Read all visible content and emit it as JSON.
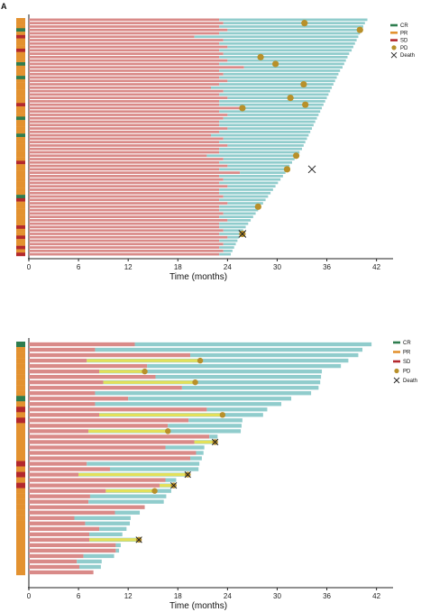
{
  "panel_label": "A",
  "legend_labels": [
    "CR",
    "PR",
    "SD",
    "PD",
    "Death"
  ],
  "colors": {
    "CR": "#2e7d4f",
    "PR": "#e39230",
    "SD": "#b3282d",
    "PD": "#b8902a",
    "Death": "#222222",
    "pre_bar": "#d98a88",
    "post_bar": "#90cccc",
    "yellow_bar": "#e3e05a"
  },
  "chart_data": [
    {
      "type": "swimmer",
      "xlabel": "Time (months)",
      "xlim": [
        0,
        44
      ],
      "xticks": [
        0,
        6,
        12,
        18,
        24,
        30,
        36,
        42
      ],
      "bars": [
        {
          "first": 23,
          "total": 40.9,
          "resp": "PR"
        },
        {
          "first": 23.5,
          "total": 40.6,
          "resp": "PR"
        },
        {
          "first": 23,
          "total": 40.4,
          "resp": "PR"
        },
        {
          "first": 24,
          "total": 40.2,
          "resp": "CR"
        },
        {
          "first": 23,
          "total": 40,
          "resp": "PR"
        },
        {
          "first": 20,
          "total": 39.8,
          "resp": "SD"
        },
        {
          "first": 23.5,
          "total": 39.6,
          "resp": "PR"
        },
        {
          "first": 23,
          "total": 39.4,
          "resp": "PR"
        },
        {
          "first": 24,
          "total": 39.2,
          "resp": "PR"
        },
        {
          "first": 23,
          "total": 39,
          "resp": "SD"
        },
        {
          "first": 23.5,
          "total": 38.7,
          "resp": "PR"
        },
        {
          "first": 23,
          "total": 38.5,
          "resp": "PR"
        },
        {
          "first": 24,
          "total": 38.3,
          "resp": "PR"
        },
        {
          "first": 23,
          "total": 38.1,
          "resp": "CR"
        },
        {
          "first": 26,
          "total": 37.9,
          "resp": "PR"
        },
        {
          "first": 23,
          "total": 37.6,
          "resp": "PR"
        },
        {
          "first": 23.5,
          "total": 37.4,
          "resp": "PR"
        },
        {
          "first": 23,
          "total": 37.2,
          "resp": "CR"
        },
        {
          "first": 24,
          "total": 37,
          "resp": "PR"
        },
        {
          "first": 23,
          "total": 36.8,
          "resp": "PR"
        },
        {
          "first": 22,
          "total": 36.6,
          "resp": "PR"
        },
        {
          "first": 23.5,
          "total": 36.4,
          "resp": "PR"
        },
        {
          "first": 23,
          "total": 36.2,
          "resp": "PR"
        },
        {
          "first": 24,
          "total": 36,
          "resp": "PR"
        },
        {
          "first": 23,
          "total": 35.8,
          "resp": "PR"
        },
        {
          "first": 23,
          "total": 35.6,
          "resp": "SD"
        },
        {
          "first": 25.5,
          "total": 35.4,
          "resp": "PR"
        },
        {
          "first": 23,
          "total": 35.2,
          "resp": "PR"
        },
        {
          "first": 24,
          "total": 35,
          "resp": "PR"
        },
        {
          "first": 23.5,
          "total": 34.8,
          "resp": "CR"
        },
        {
          "first": 23,
          "total": 34.6,
          "resp": "PR"
        },
        {
          "first": 23,
          "total": 34.4,
          "resp": "PR"
        },
        {
          "first": 24,
          "total": 34.2,
          "resp": "PR"
        },
        {
          "first": 23,
          "total": 34,
          "resp": "PR"
        },
        {
          "first": 22,
          "total": 33.8,
          "resp": "CR"
        },
        {
          "first": 23.5,
          "total": 33.6,
          "resp": "PR"
        },
        {
          "first": 23,
          "total": 33.4,
          "resp": "PR"
        },
        {
          "first": 24,
          "total": 33.2,
          "resp": "PR"
        },
        {
          "first": 23,
          "total": 33,
          "resp": "PR"
        },
        {
          "first": 23,
          "total": 32.7,
          "resp": "PR"
        },
        {
          "first": 21.5,
          "total": 32.4,
          "resp": "PR"
        },
        {
          "first": 23.5,
          "total": 32.1,
          "resp": "PR"
        },
        {
          "first": 23,
          "total": 31.8,
          "resp": "SD"
        },
        {
          "first": 24,
          "total": 31.5,
          "resp": "PR"
        },
        {
          "first": 23,
          "total": 31.3,
          "resp": "PR"
        },
        {
          "first": 25.5,
          "total": 31,
          "resp": "PR"
        },
        {
          "first": 23,
          "total": 30.7,
          "resp": "PR"
        },
        {
          "first": 23.5,
          "total": 30.4,
          "resp": "PR"
        },
        {
          "first": 23,
          "total": 30.1,
          "resp": "PR"
        },
        {
          "first": 24,
          "total": 29.8,
          "resp": "PR"
        },
        {
          "first": 23,
          "total": 29.5,
          "resp": "PR"
        },
        {
          "first": 23,
          "total": 29.2,
          "resp": "PR"
        },
        {
          "first": 23.5,
          "total": 28.9,
          "resp": "CR"
        },
        {
          "first": 23,
          "total": 28.6,
          "resp": "SD"
        },
        {
          "first": 24,
          "total": 28.3,
          "resp": "PR"
        },
        {
          "first": 23,
          "total": 28,
          "resp": "PR"
        },
        {
          "first": 23,
          "total": 27.7,
          "resp": "PR"
        },
        {
          "first": 23.5,
          "total": 27.4,
          "resp": "PR"
        },
        {
          "first": 23,
          "total": 27.1,
          "resp": "PR"
        },
        {
          "first": 24,
          "total": 26.8,
          "resp": "PR"
        },
        {
          "first": 23,
          "total": 26.5,
          "resp": "PR"
        },
        {
          "first": 23,
          "total": 26.2,
          "resp": "SD"
        },
        {
          "first": 23.5,
          "total": 25.9,
          "resp": "PR"
        },
        {
          "first": 23,
          "total": 25.6,
          "resp": "PR"
        },
        {
          "first": 24,
          "total": 25.4,
          "resp": "SD"
        },
        {
          "first": 23,
          "total": 25.2,
          "resp": "PR"
        },
        {
          "first": 23.5,
          "total": 25,
          "resp": "PR"
        },
        {
          "first": 23,
          "total": 24.8,
          "resp": "SD"
        },
        {
          "first": 23.5,
          "total": 24.6,
          "resp": "PR"
        },
        {
          "first": 23,
          "total": 24.4,
          "resp": "SD"
        }
      ],
      "pd_events": [
        {
          "bar": 1,
          "x": 33.3
        },
        {
          "bar": 3,
          "x": 40
        },
        {
          "bar": 11,
          "x": 28
        },
        {
          "bar": 13,
          "x": 29.8
        },
        {
          "bar": 19,
          "x": 33.2
        },
        {
          "bar": 23,
          "x": 31.6
        },
        {
          "bar": 25,
          "x": 33.4
        },
        {
          "bar": 26,
          "x": 25.8
        },
        {
          "bar": 40,
          "x": 32.3
        },
        {
          "bar": 44,
          "x": 31.2
        },
        {
          "bar": 55,
          "x": 27.7
        },
        {
          "bar": 63,
          "x": 25.8
        }
      ],
      "death_events": [
        {
          "bar": 44,
          "x": 34.2
        },
        {
          "bar": 63,
          "x": 25.8
        }
      ]
    },
    {
      "type": "swimmer",
      "xlabel": "Time (months)",
      "xlim": [
        0,
        44
      ],
      "xticks": [
        0,
        6,
        12,
        18,
        24,
        30,
        36,
        42
      ],
      "bars": [
        {
          "first": 12.8,
          "total": 41.4,
          "resp": "CR"
        },
        {
          "first": 8,
          "total": 40.3,
          "resp": "PR"
        },
        {
          "first": 19.5,
          "total": 39.8,
          "resp": "PR"
        },
        {
          "first": 7,
          "total": 38.6,
          "yellow": [
            7,
            20.7
          ],
          "resp": "PR"
        },
        {
          "first": 14.3,
          "total": 37.7,
          "resp": "PR"
        },
        {
          "first": 8.5,
          "total": 35.4,
          "yellow": [
            8.5,
            14
          ],
          "resp": "PR"
        },
        {
          "first": 15.3,
          "total": 35.3,
          "resp": "PR"
        },
        {
          "first": 9,
          "total": 35.2,
          "yellow": [
            9,
            20.1
          ],
          "resp": "PR"
        },
        {
          "first": 18.5,
          "total": 35,
          "resp": "PR"
        },
        {
          "first": 8,
          "total": 34.1,
          "resp": "PR"
        },
        {
          "first": 12,
          "total": 31.7,
          "resp": "CR"
        },
        {
          "first": 8,
          "total": 30.5,
          "resp": "PR"
        },
        {
          "first": 21.5,
          "total": 28.8,
          "resp": "SD"
        },
        {
          "first": 8.5,
          "total": 28.3,
          "yellow": [
            8.5,
            23.4
          ],
          "resp": "PR"
        },
        {
          "first": 19.3,
          "total": 25.8,
          "resp": "SD"
        },
        {
          "first": 16.8,
          "total": 25.7,
          "resp": "PR"
        },
        {
          "first": 7.2,
          "total": 25.6,
          "yellow": [
            7.2,
            16.8
          ],
          "resp": "PR"
        },
        {
          "first": 21.8,
          "total": 22.8,
          "resp": "PR"
        },
        {
          "first": 20,
          "total": 22.5,
          "yellow": [
            20,
            22.5
          ],
          "resp": "PR"
        },
        {
          "first": 16.5,
          "total": 21.2,
          "resp": "PR"
        },
        {
          "first": 20.2,
          "total": 21.1,
          "resp": "PR"
        },
        {
          "first": 19.5,
          "total": 20.9,
          "resp": "PR"
        },
        {
          "first": 7,
          "total": 20.6,
          "resp": "SD"
        },
        {
          "first": 9.8,
          "total": 20.5,
          "resp": "PR"
        },
        {
          "first": 6,
          "total": 19.2,
          "yellow": [
            6,
            19.2
          ],
          "resp": "SD"
        },
        {
          "first": 16.5,
          "total": 17.8,
          "resp": "PR"
        },
        {
          "first": 15.8,
          "total": 17.5,
          "yellow": [
            15.8,
            17.5
          ],
          "resp": "SD"
        },
        {
          "first": 9.3,
          "total": 17.2,
          "yellow": [
            9.3,
            15.2
          ],
          "resp": "PR"
        },
        {
          "first": 7.4,
          "total": 16.6,
          "resp": "PR"
        },
        {
          "first": 7.2,
          "total": 16.3,
          "resp": "PR"
        },
        {
          "first": 14,
          "total": 14,
          "resp": "PR"
        },
        {
          "first": 10.4,
          "total": 13.4,
          "resp": "PR"
        },
        {
          "first": 5.5,
          "total": 12.3,
          "resp": "PR"
        },
        {
          "first": 6.8,
          "total": 12.2,
          "resp": "PR"
        },
        {
          "first": 8.5,
          "total": 11.8,
          "resp": "PR"
        },
        {
          "first": 7.3,
          "total": 11.3,
          "resp": "PR"
        },
        {
          "first": 7.3,
          "total": 13.3,
          "yellow": [
            7.3,
            13.3
          ],
          "resp": "PR"
        },
        {
          "first": 10.5,
          "total": 11.1,
          "resp": "PR"
        },
        {
          "first": 10.5,
          "total": 10.9,
          "resp": "PR"
        },
        {
          "first": 6.6,
          "total": 10.3,
          "resp": "PR"
        },
        {
          "first": 5.8,
          "total": 8.8,
          "resp": "PR"
        },
        {
          "first": 6.1,
          "total": 8.7,
          "resp": "PR"
        },
        {
          "first": 7.8,
          "total": 7.8,
          "resp": "PR"
        }
      ],
      "pd_events": [
        {
          "bar": 3,
          "x": 20.7
        },
        {
          "bar": 5,
          "x": 14
        },
        {
          "bar": 7,
          "x": 20.1
        },
        {
          "bar": 13,
          "x": 23.4
        },
        {
          "bar": 16,
          "x": 16.8
        },
        {
          "bar": 18,
          "x": 22.5
        },
        {
          "bar": 24,
          "x": 19.2
        },
        {
          "bar": 26,
          "x": 17.5
        },
        {
          "bar": 27,
          "x": 15.2
        },
        {
          "bar": 36,
          "x": 13.3
        }
      ],
      "death_events": [
        {
          "bar": 18,
          "x": 22.5
        },
        {
          "bar": 24,
          "x": 19.2
        },
        {
          "bar": 26,
          "x": 17.5
        },
        {
          "bar": 36,
          "x": 13.3
        }
      ]
    }
  ]
}
